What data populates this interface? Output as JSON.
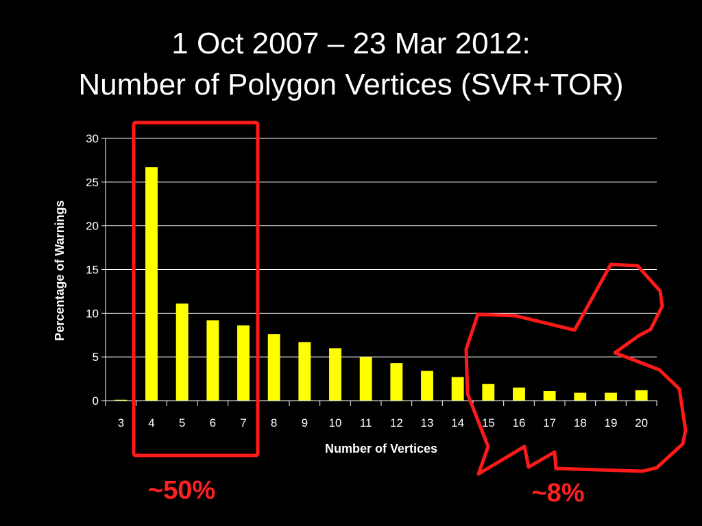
{
  "slide": {
    "title_line1": "1 Oct 2007 – 23 Mar 2012:",
    "title_line2": "Number of Polygon Vertices (SVR+TOR)"
  },
  "chart_data": {
    "type": "bar",
    "title": "",
    "xlabel": "Number of Vertices",
    "ylabel": "Percentage of Warnings",
    "categories": [
      "3",
      "4",
      "5",
      "6",
      "7",
      "8",
      "9",
      "10",
      "11",
      "12",
      "13",
      "14",
      "15",
      "16",
      "17",
      "18",
      "19",
      "20"
    ],
    "values": [
      0.1,
      26.7,
      11.1,
      9.2,
      8.6,
      7.6,
      6.7,
      6.0,
      5.0,
      4.3,
      3.4,
      2.7,
      1.9,
      1.5,
      1.1,
      0.9,
      0.9,
      1.2
    ],
    "yticks": [
      "0",
      "5",
      "10",
      "15",
      "20",
      "25",
      "30"
    ],
    "ylim": [
      0,
      30
    ],
    "grid": true,
    "legend": "none",
    "colors": {
      "bar": "#ffff00",
      "grid": "#ffffff",
      "background": "#000000",
      "annotation": "#ff2020"
    }
  },
  "annotations": {
    "left_label": "~50%",
    "right_label": "~8%"
  }
}
